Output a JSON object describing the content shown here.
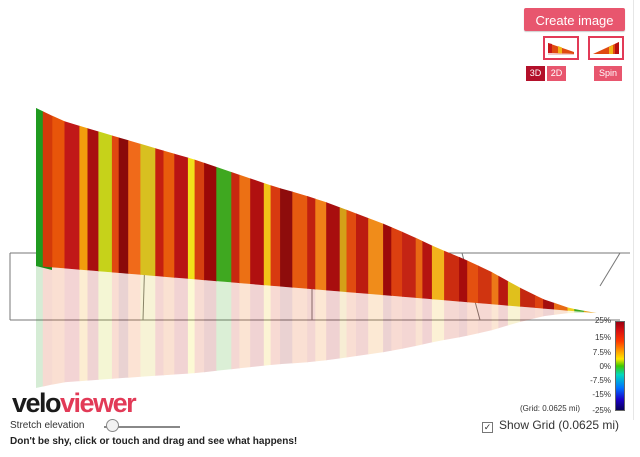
{
  "toolbar": {
    "create_image_label": "Create image",
    "mode_3d_label": "3D",
    "mode_2d_label": "2D",
    "spin_label": "Spin",
    "accent_color": "#e23a57"
  },
  "view": {
    "active_mode": "3D",
    "grid_note": "(Grid: 0.0625 mi)"
  },
  "legend": {
    "labels": [
      "25%",
      "15%",
      "7.5%",
      "0%",
      "-7.5%",
      "-15%",
      "-25%"
    ]
  },
  "logo": {
    "part1": "velo",
    "part2": "viewer"
  },
  "controls": {
    "stretch_label": "Stretch elevation",
    "stretch_value": 0.1,
    "help_text": "Don't be shy, click or touch and drag and see what happens!",
    "show_grid_label": "Show Grid (0.0625 mi)",
    "show_grid_checked": true,
    "check_mark": "✓"
  },
  "profile": {
    "elevation": [
      1.0,
      0.94,
      0.91,
      0.88,
      0.85,
      0.82,
      0.79,
      0.75,
      0.71,
      0.67,
      0.64,
      0.6,
      0.55,
      0.5,
      0.44,
      0.37,
      0.31,
      0.24,
      0.15,
      0.07,
      0.02,
      0.0
    ],
    "segment_colors": [
      "#1f9a1f",
      "#d33a0a",
      "#e8550a",
      "#c01818",
      "#f29e0c",
      "#a81010",
      "#c6d21a",
      "#e04810",
      "#8a0a0a",
      "#f06a1a",
      "#d8c020",
      "#c42010",
      "#e85c0c",
      "#b81414",
      "#f2e21a",
      "#d64010",
      "#9a0808",
      "#3fa820",
      "#c82810",
      "#ec7014",
      "#b01010",
      "#f2c418",
      "#d83a10",
      "#8e0c0c",
      "#e65a10",
      "#c02010",
      "#f08018",
      "#a80e0e",
      "#d4a018",
      "#e04c10",
      "#bc1c10",
      "#f08c1a",
      "#9c0a0a",
      "#dc4010",
      "#c42414",
      "#e86814",
      "#b41410",
      "#f2b41c",
      "#cc2c10",
      "#a60c0c",
      "#e45010",
      "#d03410",
      "#ec7818",
      "#b81810",
      "#e0c01c",
      "#c42810",
      "#de4210",
      "#a40e0e",
      "#e86a14",
      "#f0d020",
      "#3ca820",
      "#e8a018"
    ]
  }
}
